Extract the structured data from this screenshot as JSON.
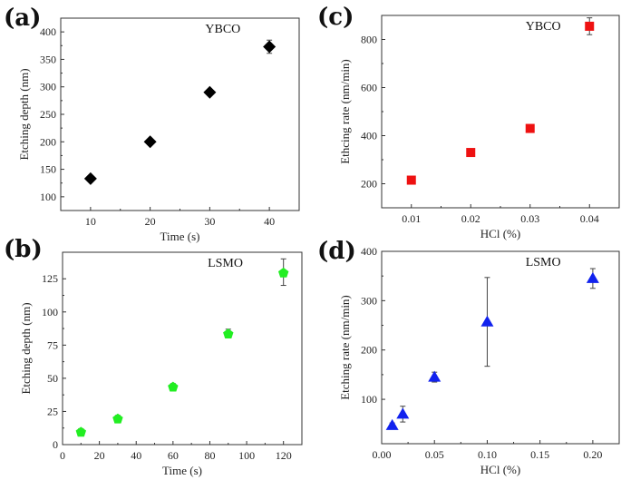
{
  "chart_data": [
    {
      "panel": "(a)",
      "type": "scatter",
      "annotation": "YBCO",
      "xlabel": "Time (s)",
      "ylabel": "Etching depth (nm)",
      "xlim": [
        5,
        45
      ],
      "ylim": [
        75,
        425
      ],
      "xticks": [
        10,
        20,
        30,
        40
      ],
      "yticks": [
        100,
        150,
        200,
        250,
        300,
        350,
        400
      ],
      "marker": "diamond",
      "color": "#000000",
      "x": [
        10,
        20,
        30,
        40
      ],
      "y": [
        133,
        200,
        290,
        373
      ],
      "yerr": [
        3,
        3,
        3,
        12
      ]
    },
    {
      "panel": "(b)",
      "type": "scatter",
      "annotation": "LSMO",
      "xlabel": "Time (s)",
      "ylabel": "Etching depth (nm)",
      "xlim": [
        0,
        130
      ],
      "ylim": [
        0,
        145
      ],
      "xticks": [
        0,
        20,
        40,
        60,
        80,
        100,
        120
      ],
      "yticks": [
        0,
        25,
        50,
        75,
        100,
        125
      ],
      "marker": "pentagon",
      "color": "#22ee22",
      "x": [
        10,
        30,
        60,
        90,
        120
      ],
      "y": [
        10,
        20,
        44,
        84,
        130
      ],
      "yerr": [
        2,
        2,
        2,
        3,
        10
      ]
    },
    {
      "panel": "(c)",
      "type": "scatter",
      "annotation": "YBCO",
      "xlabel": "HCl (%)",
      "ylabel": "Ethcing rate (nm/min)",
      "xlim": [
        0.005,
        0.045
      ],
      "ylim": [
        100,
        900
      ],
      "xticks": [
        0.01,
        0.02,
        0.03,
        0.04
      ],
      "yticks": [
        200,
        400,
        600,
        800
      ],
      "marker": "square",
      "color": "#ee1111",
      "x": [
        0.01,
        0.02,
        0.03,
        0.04
      ],
      "y": [
        215,
        330,
        430,
        855
      ],
      "yerr": [
        15,
        10,
        10,
        35
      ]
    },
    {
      "panel": "(d)",
      "type": "scatter",
      "annotation": "LSMO",
      "xlabel": "HCl (%)",
      "ylabel": "Etching rate (nm/min)",
      "xlim": [
        0,
        0.225
      ],
      "ylim": [
        10,
        400
      ],
      "xticks": [
        0.0,
        0.05,
        0.1,
        0.15,
        0.2
      ],
      "yticks": [
        100,
        200,
        300,
        400
      ],
      "marker": "triangle",
      "color": "#1122ee",
      "x": [
        0.01,
        0.02,
        0.05,
        0.1,
        0.2
      ],
      "y": [
        47,
        70,
        145,
        257,
        345
      ],
      "yerr": [
        5,
        16,
        10,
        90,
        20
      ]
    }
  ]
}
